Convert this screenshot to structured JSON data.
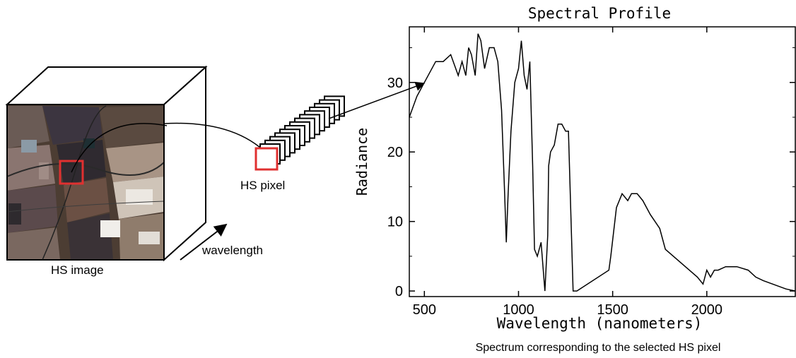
{
  "diagram": {
    "hs_image_label": "HS image",
    "wavelength_label": "wavelength",
    "hs_pixel_label": "HS pixel",
    "caption": "Spectrum corresponding to the selected HS pixel",
    "highlight_color": "#e03030"
  },
  "chart_data": {
    "type": "line",
    "title": "Spectral Profile",
    "xlabel": "Wavelength (nanometers)",
    "ylabel": "Radiance",
    "xlim": [
      420,
      2470
    ],
    "ylim": [
      -0.8,
      38
    ],
    "xticks": [
      500,
      1000,
      1500,
      2000
    ],
    "yticks": [
      0,
      10,
      20,
      30
    ],
    "grid": false,
    "series": [
      {
        "x": [
          420,
          460,
          500,
          560,
          600,
          640,
          680,
          700,
          720,
          735,
          750,
          770,
          785,
          800,
          820,
          845,
          870,
          890,
          910,
          925,
          935,
          945,
          960,
          980,
          1000,
          1015,
          1030,
          1045,
          1060,
          1075,
          1085,
          1100,
          1120,
          1140,
          1155,
          1160,
          1170,
          1190,
          1210,
          1230,
          1250,
          1265,
          1290,
          1300,
          1310,
          1480,
          1490,
          1520,
          1550,
          1580,
          1600,
          1630,
          1660,
          1700,
          1750,
          1780,
          1950,
          1980,
          2000,
          2020,
          2040,
          2060,
          2100,
          2160,
          2220,
          2260,
          2300,
          2350,
          2420,
          2470
        ],
        "y": [
          25,
          28,
          30,
          33,
          33,
          34,
          31,
          33,
          31,
          35,
          34,
          31,
          37,
          36,
          32,
          35,
          35,
          33,
          26,
          15,
          7,
          14,
          23,
          30,
          32,
          36,
          31,
          29,
          33,
          18,
          6,
          5,
          7,
          0,
          8,
          18,
          20,
          21,
          24,
          24,
          23,
          23,
          0,
          0,
          0,
          3,
          5,
          12,
          14,
          13,
          14,
          14,
          13,
          11,
          9,
          6,
          2,
          1,
          3,
          2,
          3,
          3,
          3.5,
          3.5,
          3,
          2,
          1.5,
          1,
          0.3,
          0
        ]
      }
    ]
  }
}
